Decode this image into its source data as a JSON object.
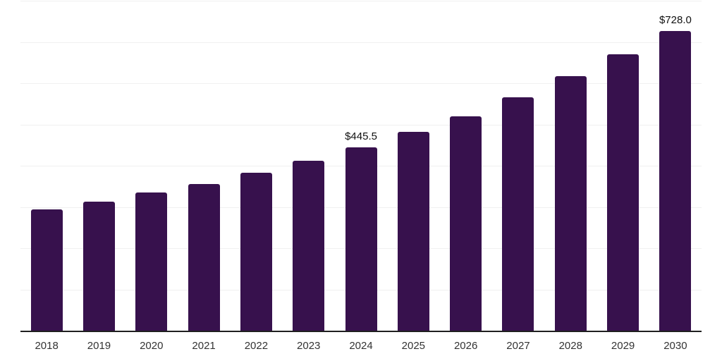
{
  "chart": {
    "background_color": "#ffffff",
    "bar_color": "#37114D",
    "gridline_color": "#f0f0f0",
    "axis_line_color": "#1f1f1f",
    "tick_label_color": "#333333",
    "data_label_color": "#111111"
  },
  "chart_data": {
    "type": "bar",
    "title": "",
    "xlabel": "",
    "ylabel": "",
    "categories": [
      "2018",
      "2019",
      "2020",
      "2021",
      "2022",
      "2023",
      "2024",
      "2025",
      "2026",
      "2027",
      "2028",
      "2029",
      "2030"
    ],
    "values": [
      296,
      314,
      337,
      358,
      385,
      413,
      445.5,
      483,
      521,
      567,
      618,
      671,
      728
    ],
    "data_labels": [
      {
        "category": "2024",
        "text": "$445.5"
      },
      {
        "category": "2030",
        "text": "$728.0"
      }
    ],
    "ylim": [
      0,
      800
    ],
    "grid_step": 100,
    "grid": "horizontal",
    "y_axis_tick_labels": "none",
    "legend_position": "none"
  }
}
